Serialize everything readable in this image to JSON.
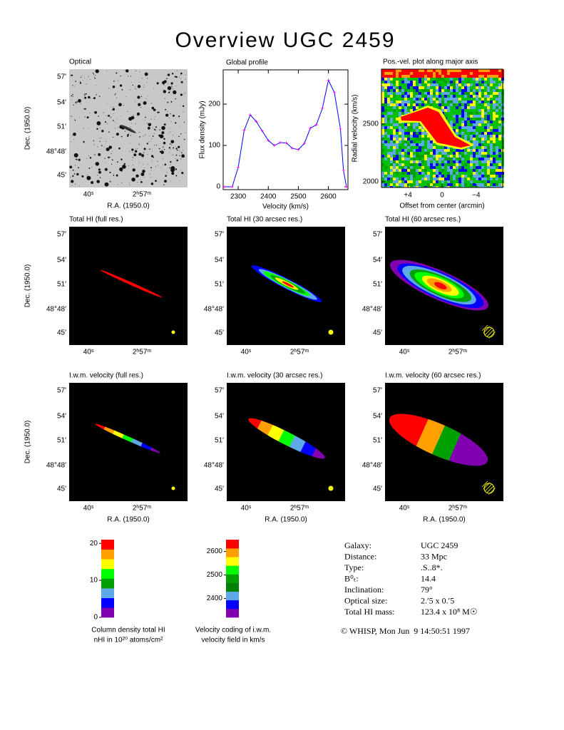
{
  "title": "Overview UGC 2459",
  "sky_axes": {
    "xlabel": "R.A. (1950.0)",
    "ylabel": "Dec. (1950.0)",
    "xticks": [
      "40ˢ",
      "2ʰ57ᵐ"
    ],
    "yticks": [
      "57′",
      "54′",
      "51′",
      "48°48′",
      "45′"
    ]
  },
  "panels": [
    {
      "title": "Optical"
    },
    {
      "title": "Total HI (full res.)"
    },
    {
      "title": "Total HI (30 arcsec res.)"
    },
    {
      "title": "Total HI (60 arcsec res.)"
    },
    {
      "title": "I.w.m. velocity (full res.)"
    },
    {
      "title": "I.w.m. velocity (30 arcsec res.)"
    },
    {
      "title": "I.w.m. velocity (60 arcsec res.)"
    }
  ],
  "chart_data": {
    "type": "line",
    "title": "Global profile",
    "xlabel": "Velocity (km/s)",
    "ylabel": "Flux density (mJy)",
    "x": [
      2255,
      2280,
      2300,
      2320,
      2340,
      2360,
      2380,
      2400,
      2420,
      2440,
      2460,
      2480,
      2500,
      2520,
      2540,
      2560,
      2580,
      2600,
      2620,
      2640,
      2650,
      2660
    ],
    "series": [
      {
        "color": "#0000ff",
        "marker_color": "#ff00ff",
        "values": [
          0,
          0,
          47,
          137,
          174,
          158,
          135,
          112,
          100,
          107,
          106,
          93,
          90,
          105,
          142,
          150,
          190,
          258,
          228,
          140,
          40,
          0
        ]
      }
    ],
    "xlim": [
      2250,
      2665
    ],
    "ylim": [
      -7,
      283
    ],
    "xticks": [
      2300,
      2400,
      2500,
      2600
    ],
    "yticks": [
      0,
      100,
      200
    ]
  },
  "pv": {
    "title": "Pos.-vel. plot along major axis",
    "xlabel": "Offset from center (arcmin)",
    "ylabel": "Radial velocity (km/s)",
    "xlim": [
      7.1,
      -7.1
    ],
    "ylim": [
      1950,
      2975
    ],
    "xticks": [
      {
        "value": 4,
        "label": "+4"
      },
      0,
      {
        "value": -4,
        "label": "−4"
      }
    ],
    "yticks": [
      2000,
      2500
    ]
  },
  "colorbars": [
    {
      "lines": [
        "Column density total HI",
        "nHI in 10²⁰ atoms/cm²"
      ],
      "lim": [
        0,
        21
      ],
      "ticks": [
        0,
        10,
        20
      ],
      "colors": [
        "#8000b0",
        "#0000ff",
        "#5fa8e8",
        "#00a000",
        "#00ff00",
        "#ffff00",
        "#ffa000",
        "#ff0000"
      ]
    },
    {
      "lines": [
        "Velocity coding of i.w.m.",
        "velocity field in km/s"
      ],
      "lim": [
        2320,
        2650
      ],
      "ticks": [
        2400,
        2500,
        2600
      ],
      "colors": [
        "#8000b0",
        "#0000ff",
        "#5fa8e8",
        "#008000",
        "#00a000",
        "#00ff00",
        "#ffff00",
        "#ffa000",
        "#ff0000"
      ]
    }
  ],
  "info": [
    [
      "Galaxy:",
      "UGC 2459"
    ],
    [
      "Distance:",
      "33 Mpc"
    ],
    [
      "Type:",
      ".S..8*."
    ],
    [
      "B⁰ₜ:",
      "14.4"
    ],
    [
      "Inclination:",
      "79°"
    ],
    [
      "Optical size:",
      "2.′5 x 0.′5"
    ],
    [
      "Total HI mass:",
      "123.4 x 10⁸ M☉"
    ]
  ],
  "footer": "© WHISP, Mon Jun  9 14:50:51 1997"
}
